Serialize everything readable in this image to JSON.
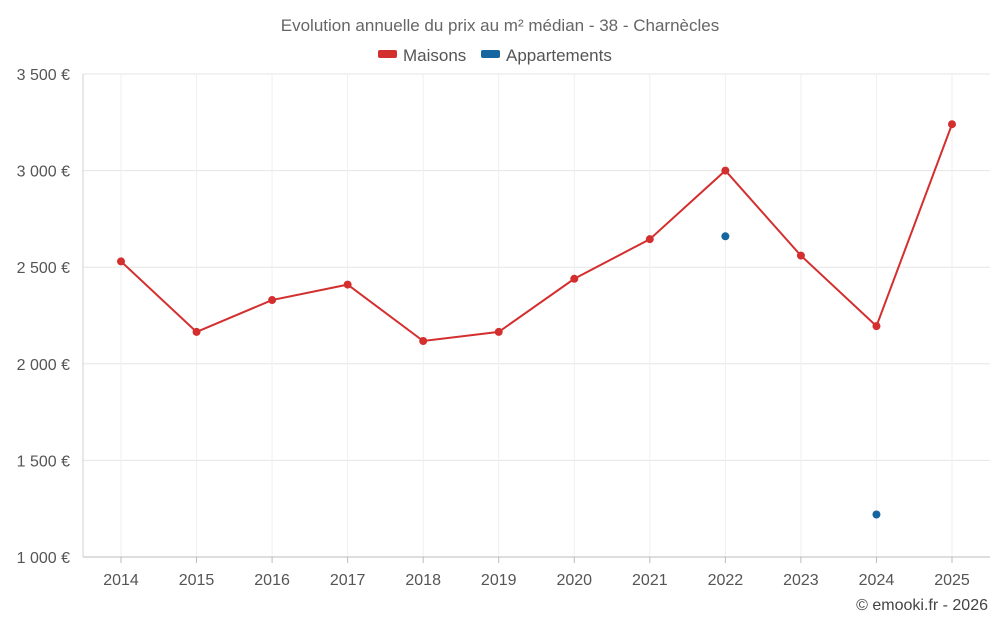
{
  "chart_data": {
    "type": "line",
    "title": "Evolution annuelle du prix au m² médian - 38 - Charnècles",
    "categories": [
      "2014",
      "2015",
      "2016",
      "2017",
      "2018",
      "2019",
      "2020",
      "2021",
      "2022",
      "2023",
      "2024",
      "2025"
    ],
    "series": [
      {
        "name": "Maisons",
        "color": "#d32f2f",
        "values": [
          2530,
          2165,
          2330,
          2410,
          2118,
          2165,
          2440,
          2645,
          3000,
          2560,
          2195,
          3240
        ]
      },
      {
        "name": "Appartements",
        "color": "#1565a0",
        "values": [
          null,
          null,
          null,
          null,
          null,
          null,
          null,
          null,
          2660,
          null,
          1220,
          null
        ]
      }
    ],
    "ylim": [
      1000,
      3500
    ],
    "yticks": [
      1000,
      1500,
      2000,
      2500,
      3000,
      3500
    ],
    "ytick_labels": [
      "1 000 €",
      "1 500 €",
      "2 000 €",
      "2 500 €",
      "3 000 €",
      "3 500 €"
    ],
    "grid": true,
    "legend_position": "top-center",
    "xlabel": "",
    "ylabel": ""
  },
  "credit": "© emooki.fr - 2026"
}
